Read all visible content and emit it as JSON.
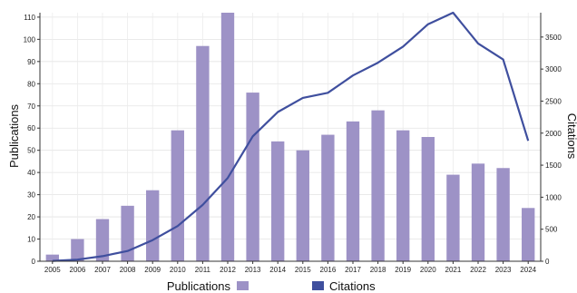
{
  "chart_data": {
    "type": "bar+line",
    "categories": [
      "2005",
      "2006",
      "2007",
      "2008",
      "2009",
      "2010",
      "2011",
      "2012",
      "2013",
      "2014",
      "2015",
      "2016",
      "2017",
      "2018",
      "2019",
      "2020",
      "2021",
      "2022",
      "2023",
      "2024"
    ],
    "series": [
      {
        "name": "Publications",
        "type": "bar",
        "axis": "left",
        "color": "#9d92c6",
        "values": [
          3,
          10,
          19,
          25,
          32,
          59,
          97,
          112,
          76,
          54,
          50,
          57,
          63,
          68,
          59,
          56,
          39,
          44,
          42,
          24
        ]
      },
      {
        "name": "Citations",
        "type": "line",
        "axis": "right",
        "color": "#3f4f9e",
        "values": [
          5,
          25,
          80,
          160,
          330,
          550,
          880,
          1300,
          1950,
          2330,
          2550,
          2630,
          2900,
          3100,
          3350,
          3700,
          3880,
          3400,
          3150,
          1880
        ]
      }
    ],
    "ylabel": "Publications",
    "y2label": "Citations",
    "ylim": [
      0,
      112
    ],
    "y2lim": [
      0,
      3880
    ],
    "yticks": [
      0,
      10,
      20,
      30,
      40,
      50,
      60,
      70,
      80,
      90,
      100,
      110
    ],
    "y2ticks": [
      0,
      500,
      1000,
      1500,
      2000,
      2500,
      3000,
      3500
    ],
    "grid": true,
    "legend_position": "bottom"
  }
}
